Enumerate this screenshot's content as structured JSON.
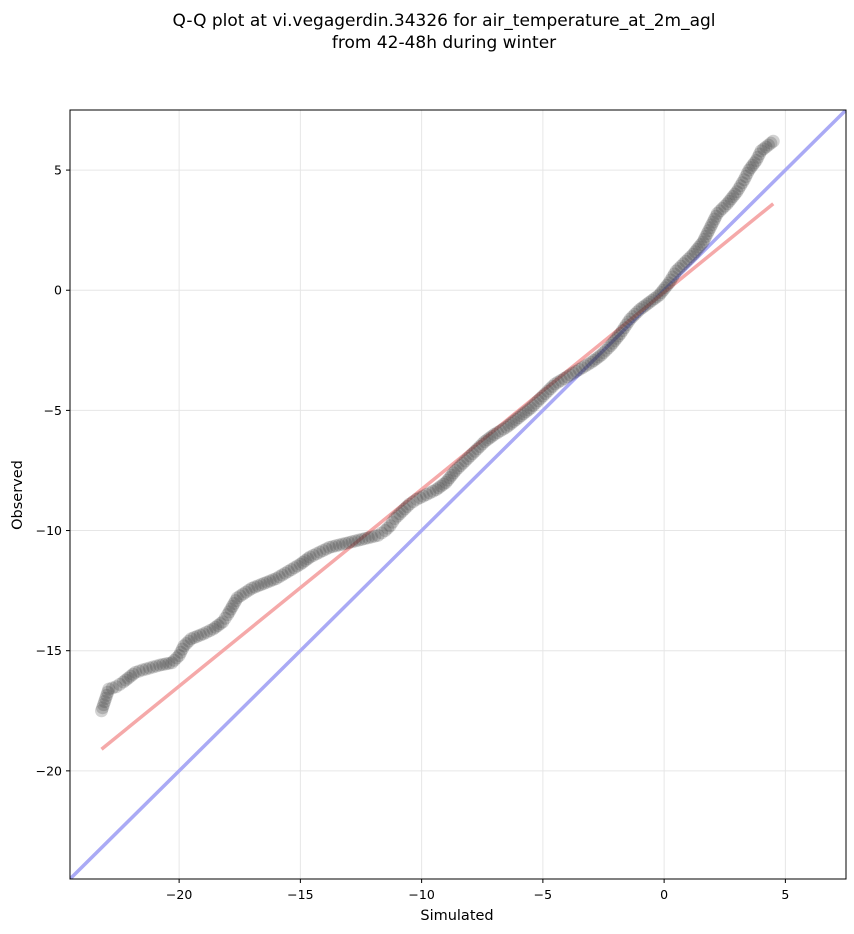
{
  "chart_data": {
    "type": "scatter",
    "title_line1": "Q-Q plot at vi.vegagerdin.34326 for air_temperature_at_2m_agl",
    "title_line2": "from 42-48h during winter",
    "xlabel": "Simulated",
    "ylabel": "Observed",
    "xlim": [
      -24.5,
      7.5
    ],
    "ylim": [
      -24.5,
      7.5
    ],
    "xticks": [
      -20,
      -15,
      -10,
      -5,
      0,
      5
    ],
    "yticks": [
      -20,
      -15,
      -10,
      -5,
      0,
      5
    ],
    "xtick_labels": [
      "−20",
      "−15",
      "−10",
      "−5",
      "0",
      "5"
    ],
    "ytick_labels": [
      "−20",
      "−15",
      "−10",
      "−5",
      "0",
      "5"
    ],
    "grid": true,
    "colors": {
      "points": "#333333",
      "identity_line": "#aaaaf5",
      "fit_line": "#f5a9a9",
      "grid": "#e6e6e6"
    },
    "identity_line": {
      "x": [
        -24.5,
        7.5
      ],
      "y": [
        -24.5,
        7.5
      ]
    },
    "fit_line": {
      "x": [
        -23.2,
        4.5
      ],
      "y": [
        -19.1,
        3.6
      ]
    },
    "quantiles": {
      "x": [
        -23.2,
        -22.9,
        -22.6,
        -22.3,
        -21.8,
        -21.5,
        -20.8,
        -20.3,
        -20.0,
        -19.8,
        -19.5,
        -19.0,
        -18.6,
        -18.2,
        -18.0,
        -17.6,
        -17.0,
        -16.5,
        -16.0,
        -15.5,
        -15.0,
        -14.6,
        -14.2,
        -13.8,
        -13.4,
        -13.0,
        -12.6,
        -12.2,
        -11.8,
        -11.5,
        -11.3,
        -11.1,
        -10.8,
        -10.5,
        -10.2,
        -9.8,
        -9.4,
        -9.0,
        -8.6,
        -8.2,
        -7.8,
        -7.4,
        -7.0,
        -6.5,
        -6.0,
        -5.5,
        -5.0,
        -4.5,
        -4.0,
        -3.5,
        -3.0,
        -2.6,
        -2.2,
        -1.8,
        -1.4,
        -1.0,
        -0.6,
        -0.2,
        0.2,
        0.5,
        0.8,
        1.2,
        1.6,
        1.9,
        2.2,
        2.6,
        3.0,
        3.3,
        3.5,
        3.8,
        4.0,
        4.5
      ],
      "y": [
        -17.5,
        -16.6,
        -16.5,
        -16.3,
        -15.9,
        -15.8,
        -15.6,
        -15.5,
        -15.2,
        -14.8,
        -14.5,
        -14.3,
        -14.1,
        -13.8,
        -13.5,
        -12.8,
        -12.4,
        -12.2,
        -12.0,
        -11.7,
        -11.4,
        -11.1,
        -10.9,
        -10.7,
        -10.6,
        -10.5,
        -10.4,
        -10.3,
        -10.2,
        -10.0,
        -9.8,
        -9.5,
        -9.2,
        -8.9,
        -8.7,
        -8.5,
        -8.3,
        -8.0,
        -7.5,
        -7.1,
        -6.7,
        -6.3,
        -6.0,
        -5.7,
        -5.3,
        -4.9,
        -4.4,
        -3.9,
        -3.6,
        -3.3,
        -3.0,
        -2.7,
        -2.3,
        -1.8,
        -1.2,
        -0.8,
        -0.5,
        -0.2,
        0.3,
        0.8,
        1.1,
        1.5,
        2.0,
        2.6,
        3.2,
        3.6,
        4.1,
        4.6,
        5.0,
        5.4,
        5.8,
        6.2
      ]
    }
  }
}
